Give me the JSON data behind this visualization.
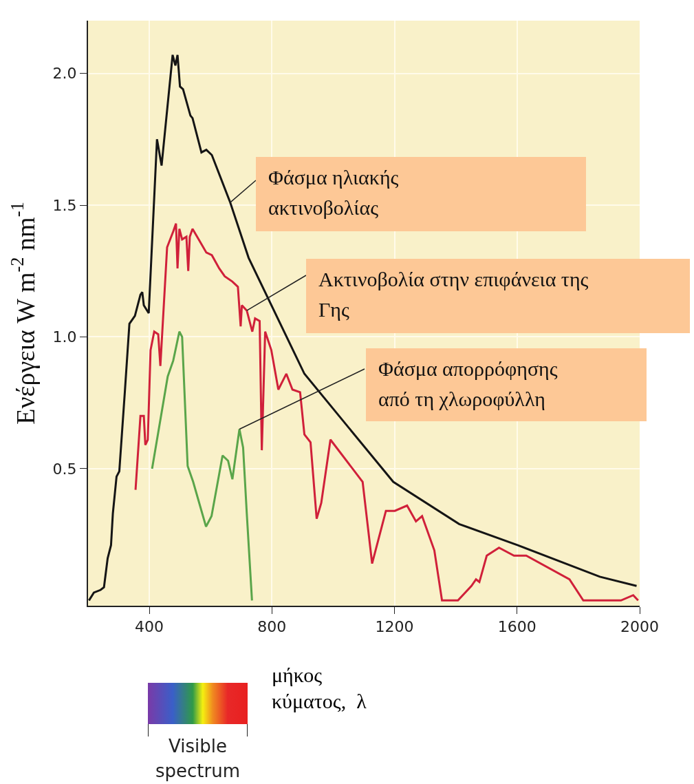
{
  "chart_data": {
    "type": "line",
    "ylabel": "Ενέργεια W m$^{-2}$ nm$^{-1}$",
    "xlabel": "μήκος\nκύματος,  λ",
    "xlim": [
      200,
      2000
    ],
    "xticks": [
      400,
      800,
      1200,
      1600,
      2000
    ],
    "ylim": [
      -0.02,
      2.2
    ],
    "yticks": [
      {
        "value": 0.5,
        "label": "0.5"
      },
      {
        "value": 1,
        "label": "1.0"
      },
      {
        "value": 1.5,
        "label": "1.5"
      },
      {
        "value": 2,
        "label": "2.0"
      }
    ],
    "grid": true,
    "line_style": "solid",
    "marker": "none",
    "series": [
      {
        "color": "#151515",
        "x": [
          203,
          219,
          241,
          252,
          264,
          275,
          281,
          293,
          302,
          320,
          335,
          353,
          371,
          377,
          382,
          398,
          425,
          440,
          476,
          485,
          492,
          500,
          510,
          534,
          541,
          570,
          586,
          604,
          664,
          724,
          906,
          1196,
          1411,
          1601,
          1870,
          1990
        ],
        "values": [
          0,
          0.03,
          0.04,
          0.05,
          0.16,
          0.21,
          0.33,
          0.47,
          0.49,
          0.79,
          1.05,
          1.08,
          1.16,
          1.17,
          1.12,
          1.09,
          1.75,
          1.65,
          2.07,
          2.03,
          2.07,
          1.95,
          1.94,
          1.84,
          1.83,
          1.7,
          1.71,
          1.69,
          1.51,
          1.3,
          0.86,
          0.45,
          0.29,
          0.21,
          0.09,
          0.055
        ]
      },
      {
        "color": "#d0203a",
        "x": [
          355,
          371,
          382,
          387,
          395,
          404,
          416,
          429,
          436,
          458,
          478,
          487,
          492,
          498,
          507,
          521,
          527,
          532,
          541,
          561,
          586,
          604,
          628,
          646,
          671,
          689,
          698,
          702,
          718,
          736,
          745,
          760,
          767,
          778,
          798,
          821,
          847,
          867,
          892,
          906,
          926,
          946,
          961,
          991,
          1096,
          1127,
          1172,
          1201,
          1241,
          1270,
          1290,
          1330,
          1355,
          1407,
          1451,
          1466,
          1477,
          1501,
          1541,
          1590,
          1630,
          1771,
          1816,
          1939,
          1979,
          1995
        ],
        "values": [
          0.42,
          0.7,
          0.7,
          0.59,
          0.61,
          0.95,
          1.02,
          1.01,
          0.89,
          1.34,
          1.4,
          1.43,
          1.26,
          1.41,
          1.37,
          1.38,
          1.25,
          1.38,
          1.41,
          1.37,
          1.32,
          1.31,
          1.26,
          1.23,
          1.21,
          1.19,
          1.04,
          1.12,
          1.1,
          1.02,
          1.07,
          1.06,
          0.57,
          1.02,
          0.95,
          0.8,
          0.86,
          0.8,
          0.79,
          0.63,
          0.6,
          0.31,
          0.37,
          0.61,
          0.45,
          0.14,
          0.34,
          0.34,
          0.36,
          0.3,
          0.32,
          0.19,
          0,
          0,
          0.055,
          0.08,
          0.07,
          0.17,
          0.2,
          0.17,
          0.17,
          0.08,
          0,
          0,
          0.02,
          0
        ]
      },
      {
        "color": "#5aa54a",
        "x": [
          409,
          460,
          478,
          498,
          507,
          525,
          543,
          585,
          603,
          639,
          657,
          671,
          694,
          706,
          718,
          735
        ],
        "values": [
          0.5,
          0.85,
          0.91,
          1.02,
          1.0,
          0.51,
          0.45,
          0.28,
          0.32,
          0.55,
          0.53,
          0.46,
          0.65,
          0.58,
          0.33,
          0
        ]
      }
    ],
    "annotations": [
      {
        "text": "Φάσμα ηλιακής\nακτινοβολίας",
        "x": 664,
        "y": 1.51
      },
      {
        "text": "Ακτινοβολία στην επιφάνεια της\nΓης",
        "x": 718,
        "y": 1.1
      },
      {
        "text": "Φάσμα απορρόφησης\nαπό τη χλωροφύλλη",
        "x": 694,
        "y": 0.65
      },
      "Visible spectrum"
    ]
  }
}
